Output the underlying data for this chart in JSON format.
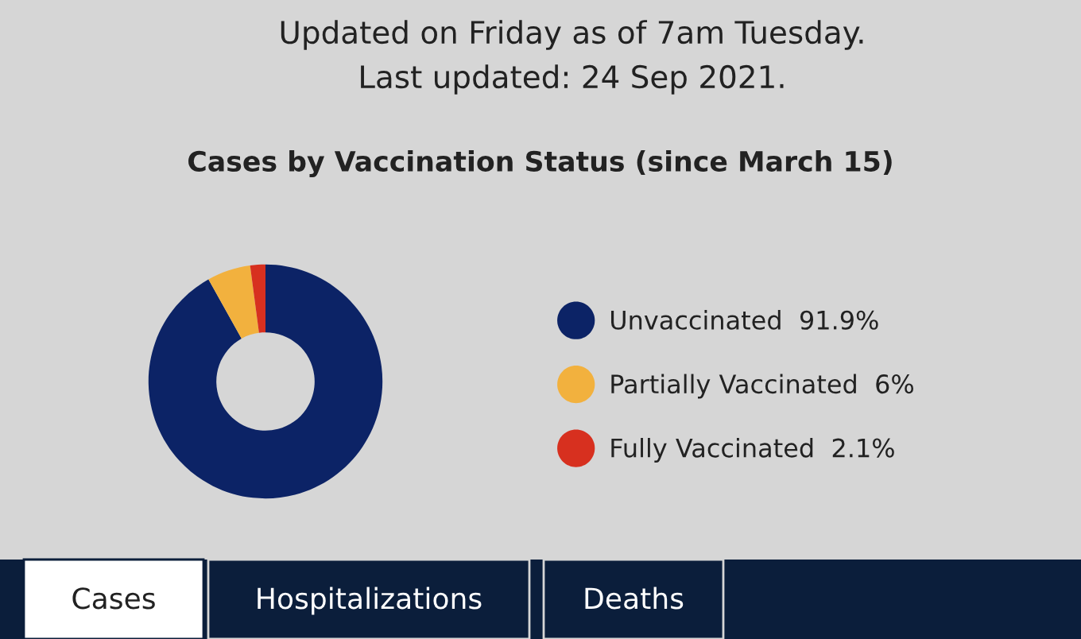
{
  "chart_data": {
    "type": "donut",
    "title": "Cases by Vaccination Status (since March 15)",
    "subtitle": "Updated on Friday as of 7am Tuesday.",
    "annotations": [
      "Last updated: 24 Sep 2021.",
      "Cases",
      "Hospitalizations",
      "Deaths"
    ],
    "categories": [
      "Unvaccinated",
      "Partially Vaccinated",
      "Fully Vaccinated"
    ],
    "values": [
      91.9,
      6,
      2.1
    ],
    "value_labels": [
      "91.9%",
      "6%",
      "2.1%"
    ],
    "colors": [
      "#0c2366",
      "#f2b13e",
      "#d7301f"
    ],
    "legend": "right"
  }
}
